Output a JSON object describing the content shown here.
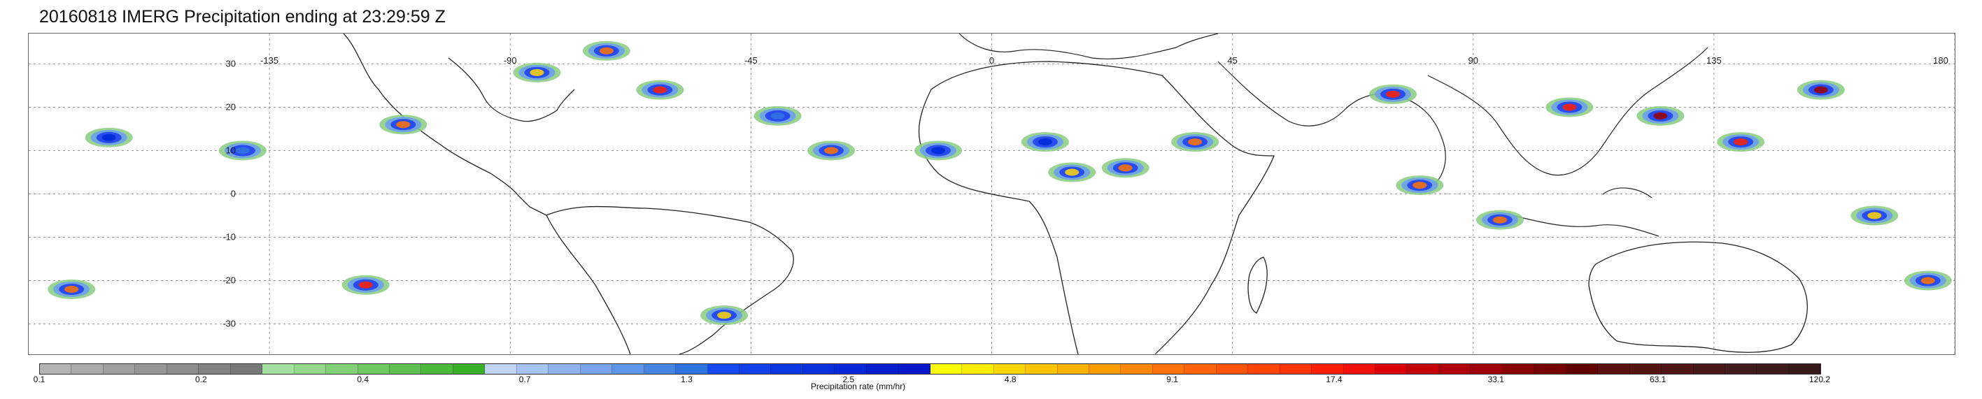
{
  "title": "20160818 IMERG Precipitation ending at 23:29:59 Z",
  "map": {
    "lon_labels": [
      "-135",
      "-90",
      "-45",
      "0",
      "45",
      "90",
      "135",
      "180"
    ],
    "lat_labels": [
      "30",
      "20",
      "10",
      "0",
      "-10",
      "-20",
      "-30"
    ],
    "lon_values": [
      -135,
      -90,
      -45,
      0,
      45,
      90,
      135,
      180
    ],
    "lat_values": [
      30,
      20,
      10,
      0,
      -10,
      -20,
      -30
    ],
    "lon_range": [
      -180,
      180
    ],
    "lat_range": [
      -37,
      37
    ],
    "grid": "dotted",
    "features": "coastlines and precipitation rate overlay"
  },
  "colorbar": {
    "label": "Precipitation rate (mm/hr)",
    "tick_labels": [
      "0.1",
      "0.2",
      "0.4",
      "0.7",
      "1.3",
      "2.5",
      "4.8",
      "9.1",
      "17.4",
      "33.1",
      "63.1",
      "120.2"
    ],
    "colors": [
      "#b4b4b4",
      "#aaaaaa",
      "#a0a0a0",
      "#969696",
      "#8c8c8c",
      "#828282",
      "#787878",
      "#a6e0a0",
      "#94d88c",
      "#82d078",
      "#70c864",
      "#5ec050",
      "#4cb83c",
      "#3ab028",
      "#c0d4f8",
      "#a8c4f4",
      "#90b4f0",
      "#78a4ec",
      "#6094e8",
      "#4884e4",
      "#3074e0",
      "#1848f0",
      "#1240ea",
      "#0c38e4",
      "#0630de",
      "#0028d8",
      "#0020d0",
      "#0018c8",
      "#ffff00",
      "#ffec00",
      "#ffd800",
      "#ffc400",
      "#ffb000",
      "#ff9c00",
      "#ff8800",
      "#ff7400",
      "#ff6400",
      "#ff5400",
      "#ff4400",
      "#ff3400",
      "#ff2000",
      "#f01000",
      "#d80000",
      "#c40000",
      "#b00000",
      "#9c0000",
      "#880000",
      "#740000",
      "#600000",
      "#5a1010",
      "#541414",
      "#4e1616",
      "#481818",
      "#421a1a",
      "#3c1a1a",
      "#361818"
    ]
  },
  "precip_cells": [
    {
      "lon": -172,
      "lat": -22,
      "rate": 9.1
    },
    {
      "lon": -165,
      "lat": 13,
      "rate": 2.5
    },
    {
      "lon": -140,
      "lat": 10,
      "rate": 1.3
    },
    {
      "lon": -117,
      "lat": -21,
      "rate": 17.4
    },
    {
      "lon": -110,
      "lat": 16,
      "rate": 9.1
    },
    {
      "lon": -85,
      "lat": 28,
      "rate": 4.8
    },
    {
      "lon": -72,
      "lat": 33,
      "rate": 9.1
    },
    {
      "lon": -62,
      "lat": 24,
      "rate": 17.4
    },
    {
      "lon": -50,
      "lat": -28,
      "rate": 4.8
    },
    {
      "lon": -40,
      "lat": 18,
      "rate": 1.3
    },
    {
      "lon": -30,
      "lat": 10,
      "rate": 9.1
    },
    {
      "lon": -10,
      "lat": 10,
      "rate": 2.5
    },
    {
      "lon": 10,
      "lat": 12,
      "rate": 2.5
    },
    {
      "lon": 15,
      "lat": 5,
      "rate": 4.8
    },
    {
      "lon": 25,
      "lat": 6,
      "rate": 9.1
    },
    {
      "lon": 38,
      "lat": 12,
      "rate": 9.1
    },
    {
      "lon": 75,
      "lat": 23,
      "rate": 17.4
    },
    {
      "lon": 80,
      "lat": 2,
      "rate": 9.1
    },
    {
      "lon": 95,
      "lat": -6,
      "rate": 9.1
    },
    {
      "lon": 108,
      "lat": 20,
      "rate": 17.4
    },
    {
      "lon": 125,
      "lat": 18,
      "rate": 33.1
    },
    {
      "lon": 140,
      "lat": 12,
      "rate": 17.4
    },
    {
      "lon": 155,
      "lat": 24,
      "rate": 33.1
    },
    {
      "lon": 165,
      "lat": -5,
      "rate": 4.8
    },
    {
      "lon": 175,
      "lat": -20,
      "rate": 9.1
    }
  ]
}
